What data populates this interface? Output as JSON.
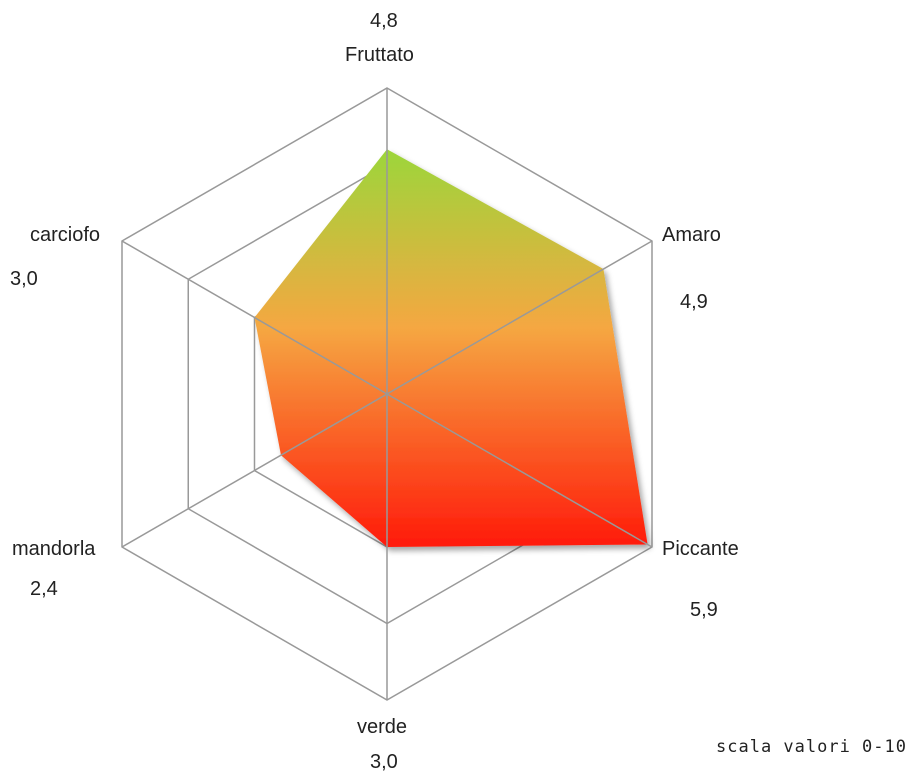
{
  "chart_data": {
    "type": "radar",
    "axes": [
      "Fruttato",
      "Amaro",
      "Piccante",
      "verde",
      "mandorla",
      "carciofo"
    ],
    "values": [
      4.8,
      4.9,
      5.9,
      3.0,
      2.4,
      3.0
    ],
    "value_labels": [
      "4,8",
      "4,9",
      "5,9",
      "3,0",
      "2,4",
      "3,0"
    ],
    "range": [
      0,
      6
    ],
    "grid_steps": 4,
    "fill_gradient": [
      "#9cd63a",
      "#f5a742",
      "#ff1a0a"
    ],
    "grid_color": "#999999",
    "note": "scala valori 0-10"
  }
}
